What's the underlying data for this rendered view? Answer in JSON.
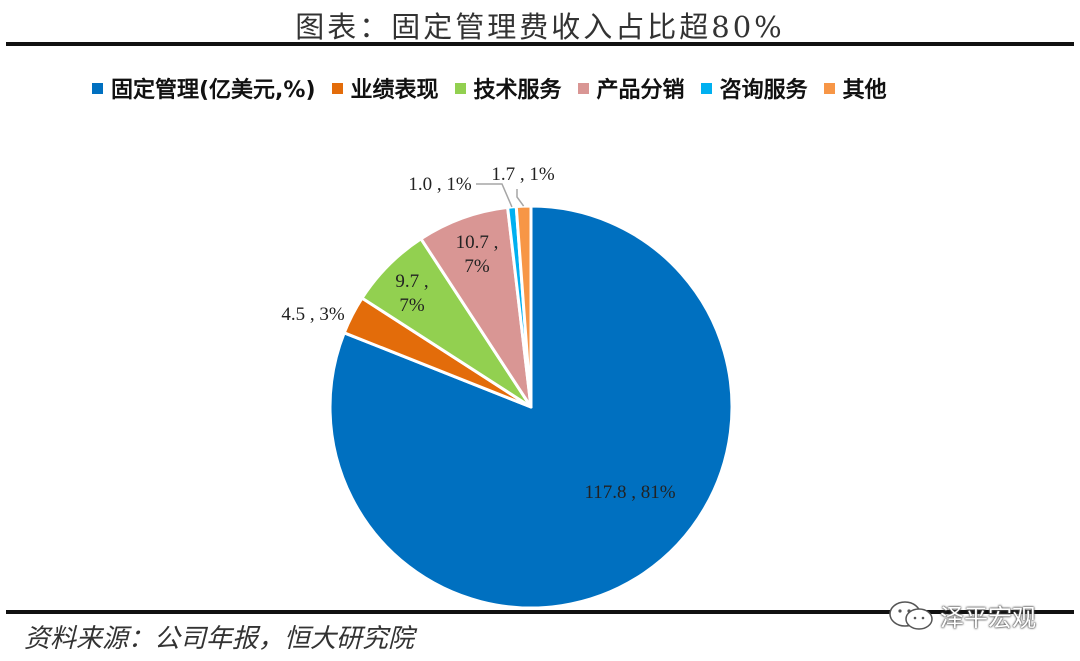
{
  "title": "图表：固定管理费收入占比超80%",
  "source": "资料来源：公司年报，恒大研究院",
  "watermark": "泽平宏观",
  "chart_data": {
    "type": "pie",
    "categories": [
      "固定管理(亿美元,%)",
      "业绩表现",
      "技术服务",
      "产品分销",
      "咨询服务",
      "其他"
    ],
    "values": [
      117.8,
      4.5,
      9.7,
      10.7,
      1.0,
      1.7
    ],
    "percent_labels": [
      "81%",
      "3%",
      "7%",
      "7%",
      "1%",
      "1%"
    ],
    "data_labels": [
      "117.8 , 81%",
      "4.5 , 3%",
      "9.7 ,\n7%",
      "10.7 ,\n7%",
      "1.0 , 1%",
      "1.7 , 1%"
    ],
    "colors": [
      "#0070C0",
      "#E36C0A",
      "#92D050",
      "#D99694",
      "#00B0F0",
      "#F79646"
    ],
    "legend_position": "top",
    "start_angle_deg": 0,
    "direction": "clockwise"
  }
}
